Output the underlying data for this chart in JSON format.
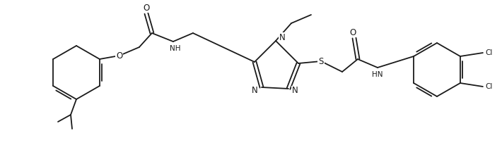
{
  "bg_color": "#ffffff",
  "line_color": "#1a1a1a",
  "line_width": 1.3,
  "font_size": 7.5,
  "figsize": [
    7.1,
    2.06
  ],
  "dpi": 100,
  "xlim": [
    0,
    710
  ],
  "ylim": [
    0,
    206
  ]
}
